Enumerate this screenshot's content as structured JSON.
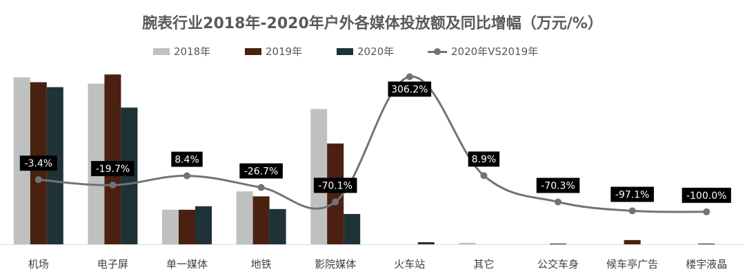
{
  "chart_data": {
    "type": "bar",
    "title": "腕表行业2018年-2020年户外各媒体投放额及同比增幅（万元/%）",
    "categories": [
      "机场",
      "电子屏",
      "单一媒体",
      "地铁",
      "影院媒体",
      "火车站",
      "其它",
      "公交车身",
      "候车亭广告",
      "楼宇液晶"
    ],
    "series": [
      {
        "name": "2018年",
        "color": "#bfc1c1",
        "values": [
          237,
          228,
          49,
          75,
          192,
          0,
          2,
          0,
          0,
          0
        ]
      },
      {
        "name": "2019年",
        "color": "#4a2010",
        "values": [
          230,
          241,
          49,
          68,
          143,
          0,
          0,
          1,
          6,
          1
        ]
      },
      {
        "name": "2020年",
        "color": "#1e3238",
        "values": [
          223,
          194,
          54,
          50,
          43,
          3,
          0,
          0,
          0,
          0
        ]
      }
    ],
    "line_series": {
      "name": "2020年VS2019年",
      "color": "#6e747a",
      "values": [
        -3.4,
        -19.7,
        8.4,
        -26.7,
        -70.1,
        306.2,
        8.9,
        -70.3,
        -97.1,
        -100.0
      ],
      "labels": [
        "-3.4%",
        "-19.7%",
        "8.4%",
        "-26.7%",
        "-70.1%",
        "306.2%",
        "8.9%",
        "-70.3%",
        "-97.1%",
        "-100.0%"
      ]
    },
    "ylim": [
      0,
      250
    ],
    "line_ylim": [
      -150,
      330
    ],
    "xlabel": "",
    "ylabel": "",
    "legend_position": "top"
  }
}
